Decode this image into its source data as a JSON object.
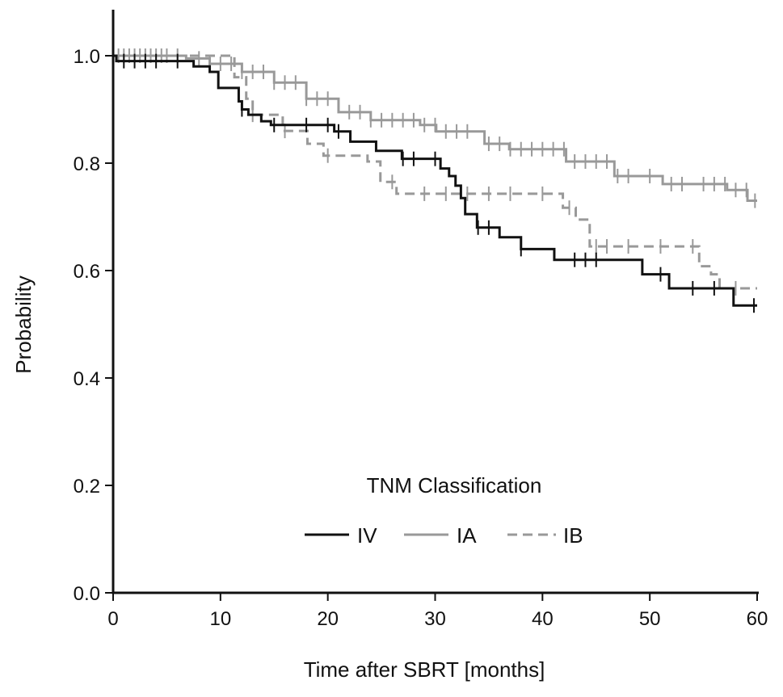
{
  "chart_data": {
    "type": "line",
    "subtype": "kaplan-meier step",
    "xlabel": "Time after SBRT [months]",
    "ylabel": "Probability",
    "xlim": [
      0,
      60
    ],
    "ylim": [
      0,
      1.0
    ],
    "xticks": [
      "0",
      "10",
      "20",
      "30",
      "40",
      "50",
      "60"
    ],
    "yticks": [
      "0.0",
      "0.2",
      "0.4",
      "0.6",
      "0.8",
      "1.0"
    ],
    "grid": false,
    "legend": {
      "title": "TNM Classification",
      "placement": "bottom-center"
    },
    "series": [
      {
        "name": "IV",
        "color": "#111111",
        "style": "solid",
        "steps": [
          [
            0,
            1.0
          ],
          [
            0.3,
            0.99
          ],
          [
            7.5,
            0.98
          ],
          [
            9.0,
            0.97
          ],
          [
            9.8,
            0.94
          ],
          [
            11.7,
            0.915
          ],
          [
            12.0,
            0.9
          ],
          [
            12.6,
            0.89
          ],
          [
            13.8,
            0.878
          ],
          [
            14.7,
            0.871
          ],
          [
            20.6,
            0.859
          ],
          [
            22.1,
            0.84
          ],
          [
            24.5,
            0.823
          ],
          [
            26.9,
            0.808
          ],
          [
            30.5,
            0.79
          ],
          [
            31.3,
            0.776
          ],
          [
            31.9,
            0.758
          ],
          [
            32.4,
            0.735
          ],
          [
            32.8,
            0.705
          ],
          [
            33.9,
            0.68
          ],
          [
            36.0,
            0.662
          ],
          [
            38.0,
            0.64
          ],
          [
            41.1,
            0.62
          ],
          [
            49.3,
            0.593
          ],
          [
            51.8,
            0.567
          ],
          [
            57.8,
            0.535
          ]
        ],
        "end": 60,
        "censored": [
          1,
          2,
          3,
          4,
          6,
          12,
          15,
          18,
          20,
          21,
          27,
          28,
          30,
          34,
          35,
          38,
          43,
          44,
          45,
          51,
          54,
          56,
          59.7
        ]
      },
      {
        "name": "IA",
        "color": "#999999",
        "style": "solid",
        "steps": [
          [
            0,
            1.0
          ],
          [
            6.8,
            0.995
          ],
          [
            9,
            0.985
          ],
          [
            12,
            0.97
          ],
          [
            15,
            0.95
          ],
          [
            18,
            0.92
          ],
          [
            21,
            0.895
          ],
          [
            24,
            0.88
          ],
          [
            28.6,
            0.871
          ],
          [
            30.1,
            0.859
          ],
          [
            34.6,
            0.836
          ],
          [
            36.9,
            0.826
          ],
          [
            42.2,
            0.803
          ],
          [
            46.7,
            0.776
          ],
          [
            51.2,
            0.761
          ],
          [
            57.2,
            0.75
          ],
          [
            59.1,
            0.73
          ]
        ],
        "end": 60,
        "censored": [
          0.5,
          1,
          1.5,
          2,
          2.5,
          3,
          3.5,
          4,
          4.5,
          5,
          6,
          8,
          9,
          10,
          11,
          12,
          13,
          14,
          15,
          16,
          17,
          18,
          19,
          20,
          22,
          23,
          24,
          25,
          26,
          27,
          28,
          29,
          30,
          31,
          32,
          33,
          35,
          36,
          37,
          38,
          39,
          40,
          41,
          42,
          43,
          44,
          45,
          46,
          47,
          48,
          50,
          52,
          53,
          55,
          56,
          57,
          58,
          59,
          59.8
        ]
      },
      {
        "name": "IB",
        "color": "#999999",
        "style": "dashed",
        "steps": [
          [
            0,
            1.0
          ],
          [
            11.3,
            0.96
          ],
          [
            12.4,
            0.92
          ],
          [
            13.0,
            0.89
          ],
          [
            15.8,
            0.86
          ],
          [
            18.1,
            0.836
          ],
          [
            19.6,
            0.814
          ],
          [
            23.7,
            0.803
          ],
          [
            24.9,
            0.765
          ],
          [
            26.4,
            0.743
          ],
          [
            41.9,
            0.717
          ],
          [
            43.1,
            0.695
          ],
          [
            44.4,
            0.645
          ],
          [
            54.6,
            0.608
          ],
          [
            55.7,
            0.593
          ],
          [
            56.5,
            0.567
          ]
        ],
        "end": 60,
        "censored": [
          13,
          16,
          20,
          26,
          29,
          31,
          33,
          35,
          37,
          40,
          42.5,
          45,
          46,
          48,
          51,
          54,
          58
        ]
      }
    ]
  }
}
